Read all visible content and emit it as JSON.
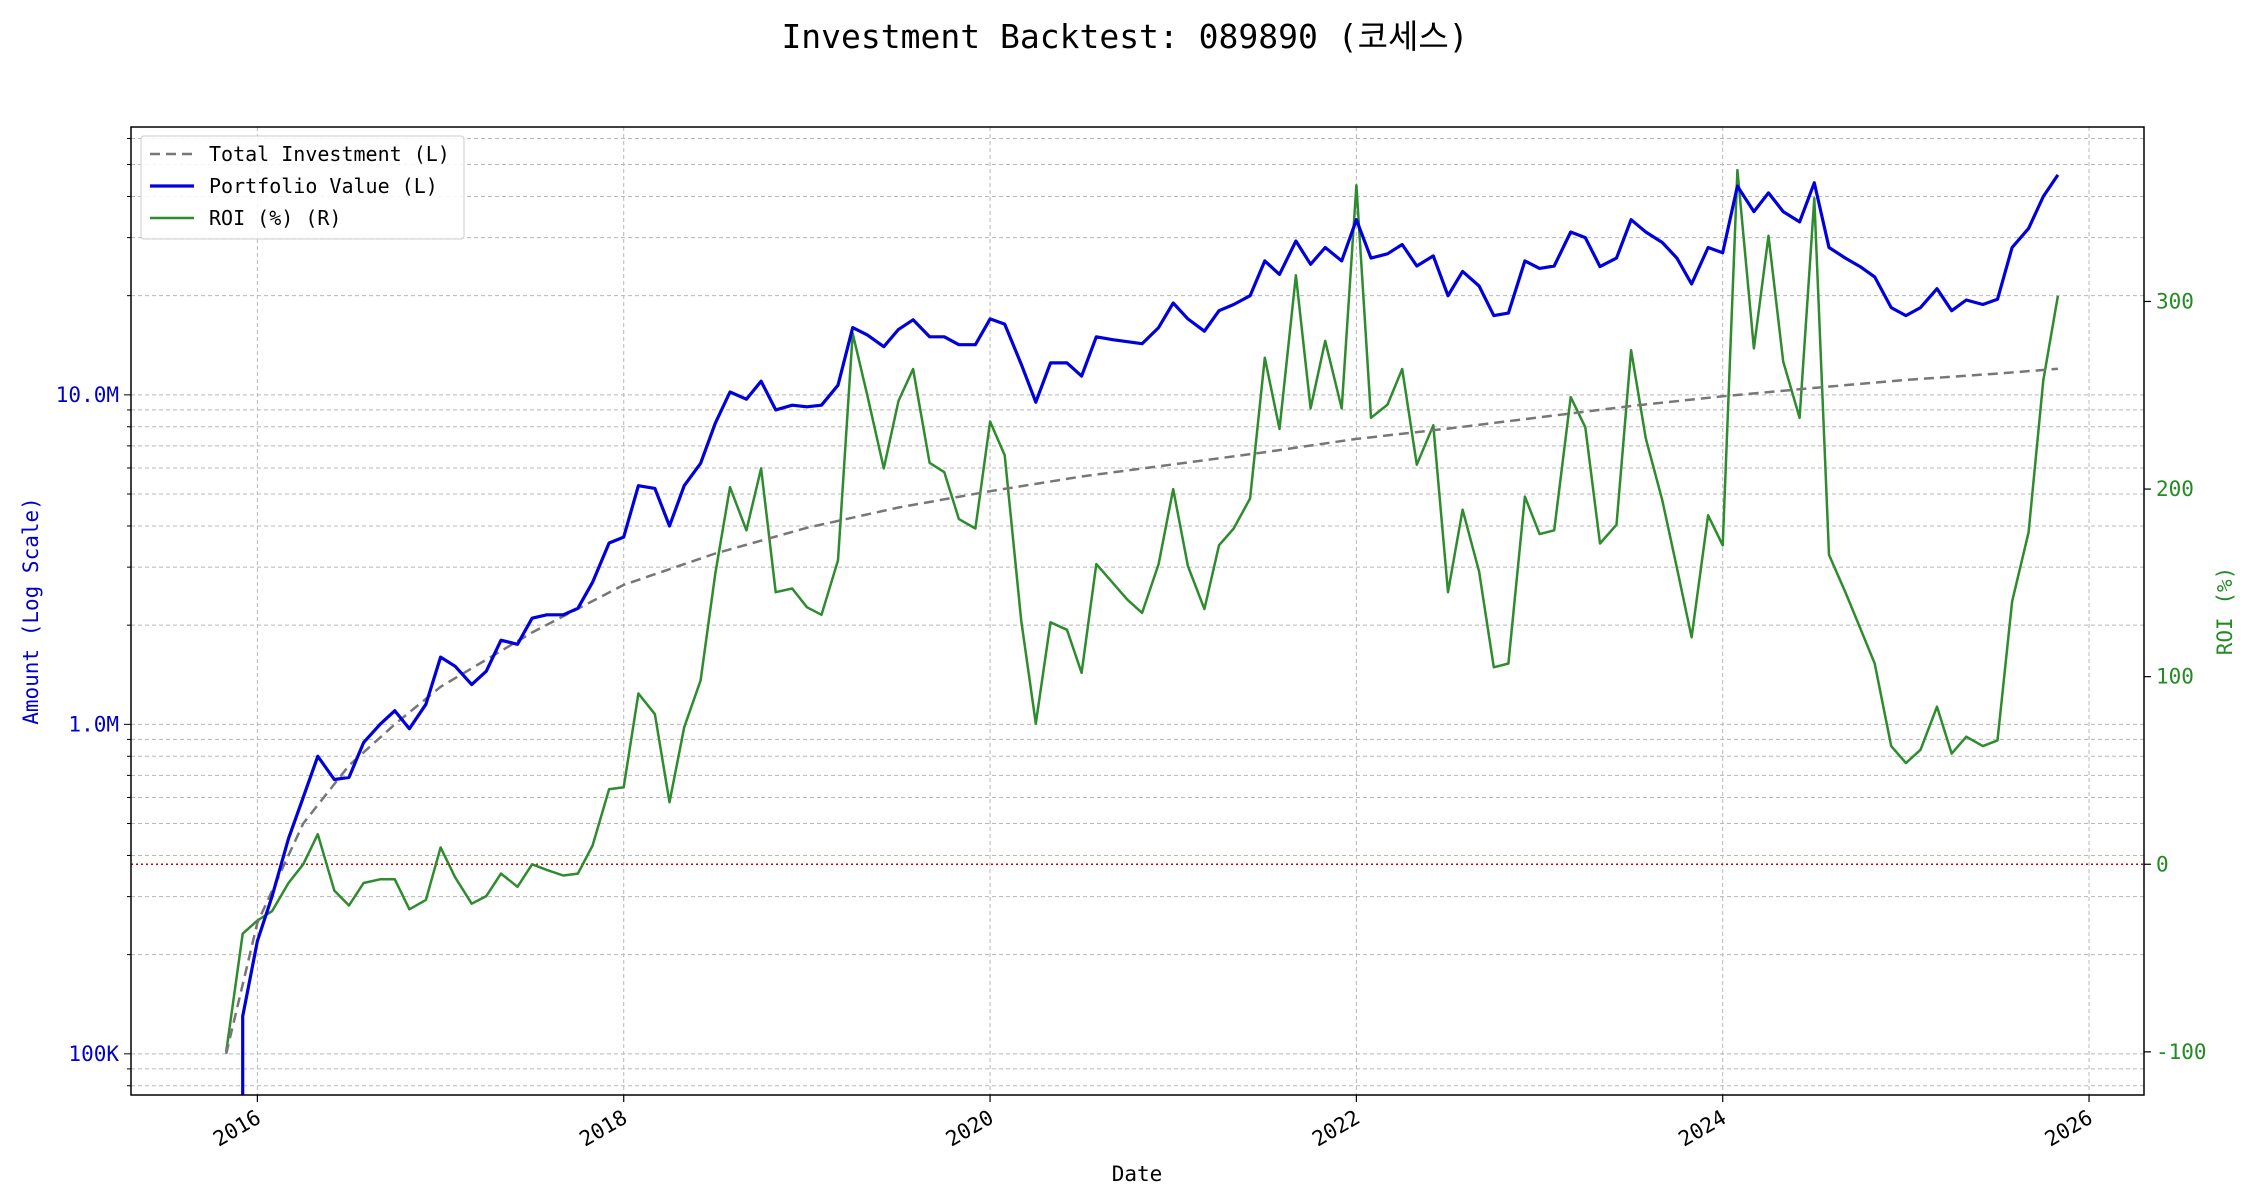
{
  "chart_data": {
    "type": "line",
    "title": "Investment Backtest: 089890 (코세스)",
    "xlabel": "Date",
    "ylabel_left": "Amount (Log Scale)",
    "ylabel_right": "ROI (%)",
    "left_axis": {
      "scale": "log",
      "range": [
        75000,
        65000000
      ],
      "major_ticks": [
        100000,
        1000000,
        10000000
      ],
      "tick_labels": [
        "100K",
        "1.0M",
        "10.0M"
      ],
      "color": "#0000cc"
    },
    "right_axis": {
      "scale": "linear",
      "range": [
        -123,
        393
      ],
      "ticks": [
        -100,
        0,
        100,
        200,
        300
      ],
      "tick_labels": [
        "-100",
        "0",
        "100",
        "200",
        "300"
      ],
      "color": "#228b22"
    },
    "x_axis": {
      "range": [
        2015.31,
        2026.3
      ],
      "ticks": [
        2016,
        2018,
        2020,
        2022,
        2024,
        2026
      ],
      "tick_labels": [
        "2016",
        "2018",
        "2020",
        "2022",
        "2024",
        "2026"
      ]
    },
    "zero_roi_line": {
      "value": 0,
      "color": "#cc0000",
      "style": "dotted"
    },
    "grid": true,
    "legend_position": "top-left",
    "series": [
      {
        "name": "Total Investment (L)",
        "axis": "left",
        "color": "#777777",
        "style": "dashed",
        "x": [
          2015.83,
          2016.0,
          2016.25,
          2016.5,
          2016.75,
          2017.0,
          2017.5,
          2018.0,
          2018.5,
          2019.0,
          2019.5,
          2020.0,
          2020.5,
          2021.0,
          2021.5,
          2022.0,
          2022.5,
          2023.0,
          2023.5,
          2024.0,
          2024.5,
          2025.0,
          2025.5,
          2025.83
        ],
        "values": [
          100000,
          250000,
          500000,
          750000,
          1000000,
          1300000,
          1900000,
          2650000,
          3300000,
          3950000,
          4550000,
          5100000,
          5650000,
          6150000,
          6700000,
          7350000,
          7900000,
          8550000,
          9250000,
          9900000,
          10500000,
          11100000,
          11600000,
          12000000
        ]
      },
      {
        "name": "Portfolio Value (L)",
        "axis": "left",
        "color": "#0000dd",
        "style": "solid",
        "x": [
          2015.92,
          2015.92,
          2016.0,
          2016.08,
          2016.17,
          2016.25,
          2016.33,
          2016.42,
          2016.5,
          2016.58,
          2016.67,
          2016.75,
          2016.83,
          2016.92,
          2017.0,
          2017.08,
          2017.17,
          2017.25,
          2017.33,
          2017.42,
          2017.5,
          2017.58,
          2017.67,
          2017.75,
          2017.83,
          2017.92,
          2018.0,
          2018.08,
          2018.17,
          2018.25,
          2018.33,
          2018.42,
          2018.5,
          2018.58,
          2018.67,
          2018.75,
          2018.83,
          2018.92,
          2019.0,
          2019.08,
          2019.17,
          2019.25,
          2019.33,
          2019.42,
          2019.5,
          2019.58,
          2019.67,
          2019.75,
          2019.83,
          2019.92,
          2020.0,
          2020.08,
          2020.17,
          2020.25,
          2020.33,
          2020.42,
          2020.5,
          2020.58,
          2020.67,
          2020.75,
          2020.83,
          2020.92,
          2021.0,
          2021.08,
          2021.17,
          2021.25,
          2021.33,
          2021.42,
          2021.5,
          2021.58,
          2021.67,
          2021.75,
          2021.83,
          2021.92,
          2022.0,
          2022.08,
          2022.17,
          2022.25,
          2022.33,
          2022.42,
          2022.5,
          2022.58,
          2022.67,
          2022.75,
          2022.83,
          2022.92,
          2023.0,
          2023.08,
          2023.17,
          2023.25,
          2023.33,
          2023.42,
          2023.5,
          2023.58,
          2023.67,
          2023.75,
          2023.83,
          2023.92,
          2024.0,
          2024.08,
          2024.17,
          2024.25,
          2024.33,
          2024.42,
          2024.5,
          2024.58,
          2024.67,
          2024.75,
          2024.83,
          2024.92,
          2025.0,
          2025.08,
          2025.17,
          2025.25,
          2025.33,
          2025.42,
          2025.5,
          2025.58,
          2025.67,
          2025.75,
          2025.83
        ],
        "values": [
          70000,
          130000,
          220000,
          300000,
          450000,
          600000,
          800000,
          680000,
          690000,
          880000,
          1000000,
          1100000,
          970000,
          1150000,
          1600000,
          1500000,
          1320000,
          1450000,
          1800000,
          1750000,
          2100000,
          2150000,
          2150000,
          2250000,
          2700000,
          3550000,
          3700000,
          5300000,
          5200000,
          4000000,
          5300000,
          6200000,
          8200000,
          10200000,
          9700000,
          11000000,
          9000000,
          9300000,
          9200000,
          9300000,
          10700000,
          16000000,
          15200000,
          14000000,
          15800000,
          16900000,
          15000000,
          15000000,
          14200000,
          14200000,
          17000000,
          16400000,
          12400000,
          9500000,
          12500000,
          12500000,
          11400000,
          15000000,
          14700000,
          14500000,
          14300000,
          16000000,
          19000000,
          17000000,
          15600000,
          18000000,
          18800000,
          20000000,
          25500000,
          23200000,
          29300000,
          24900000,
          28000000,
          25500000,
          34000000,
          26000000,
          26800000,
          28600000,
          24600000,
          26400000,
          20000000,
          23700000,
          21400000,
          17400000,
          17700000,
          25500000,
          24200000,
          24600000,
          31200000,
          30000000,
          24500000,
          26000000,
          34000000,
          31200000,
          29000000,
          26000000,
          21700000,
          28000000,
          27000000,
          43000000,
          36000000,
          41000000,
          36000000,
          33500000,
          44000000,
          28000000,
          26000000,
          24500000,
          22800000,
          18400000,
          17400000,
          18400000,
          21000000,
          18000000,
          19400000,
          18800000,
          19500000,
          28000000,
          32000000,
          40000000,
          46500000
        ]
      },
      {
        "name": "ROI (%) (R)",
        "axis": "right",
        "color": "#2e8b2e",
        "style": "solid",
        "x": [
          2015.83,
          2015.92,
          2016.0,
          2016.08,
          2016.17,
          2016.25,
          2016.33,
          2016.42,
          2016.5,
          2016.58,
          2016.67,
          2016.75,
          2016.83,
          2016.92,
          2017.0,
          2017.08,
          2017.17,
          2017.25,
          2017.33,
          2017.42,
          2017.5,
          2017.58,
          2017.67,
          2017.75,
          2017.83,
          2017.92,
          2018.0,
          2018.08,
          2018.17,
          2018.25,
          2018.33,
          2018.42,
          2018.5,
          2018.58,
          2018.67,
          2018.75,
          2018.83,
          2018.92,
          2019.0,
          2019.08,
          2019.17,
          2019.25,
          2019.33,
          2019.42,
          2019.5,
          2019.58,
          2019.67,
          2019.75,
          2019.83,
          2019.92,
          2020.0,
          2020.08,
          2020.17,
          2020.25,
          2020.33,
          2020.42,
          2020.5,
          2020.58,
          2020.67,
          2020.75,
          2020.83,
          2020.92,
          2021.0,
          2021.08,
          2021.17,
          2021.25,
          2021.33,
          2021.42,
          2021.5,
          2021.58,
          2021.67,
          2021.75,
          2021.83,
          2021.92,
          2022.0,
          2022.08,
          2022.17,
          2022.25,
          2022.33,
          2022.42,
          2022.5,
          2022.58,
          2022.67,
          2022.75,
          2022.83,
          2022.92,
          2023.0,
          2023.08,
          2023.17,
          2023.25,
          2023.33,
          2023.42,
          2023.5,
          2023.58,
          2023.67,
          2023.75,
          2023.83,
          2023.92,
          2024.0,
          2024.08,
          2024.17,
          2024.25,
          2024.33,
          2024.42,
          2024.5,
          2024.58,
          2024.67,
          2024.75,
          2024.83,
          2024.92,
          2025.0,
          2025.08,
          2025.17,
          2025.25,
          2025.33,
          2025.42,
          2025.5,
          2025.58,
          2025.67,
          2025.75,
          2025.83
        ],
        "values": [
          -100,
          -37,
          -30,
          -25,
          -10,
          0,
          16,
          -14,
          -22,
          -10,
          -8,
          -8,
          -24,
          -19,
          9,
          -7,
          -21,
          -17,
          -5,
          -12,
          0,
          -3,
          -6,
          -5,
          10,
          40,
          41,
          91,
          80,
          33,
          73,
          98,
          155,
          201,
          178,
          211,
          145,
          147,
          137,
          133,
          162,
          283,
          250,
          211,
          247,
          264,
          214,
          209,
          184,
          179,
          236,
          218,
          130,
          75,
          129,
          125,
          102,
          160,
          150,
          141,
          134,
          160,
          200,
          159,
          136,
          170,
          179,
          195,
          270,
          232,
          314,
          243,
          279,
          243,
          362,
          238,
          245,
          264,
          213,
          234,
          145,
          189,
          156,
          105,
          107,
          196,
          176,
          178,
          249,
          233,
          171,
          181,
          274,
          227,
          194,
          158,
          121,
          186,
          170,
          370,
          275,
          335,
          268,
          238,
          355,
          165,
          145,
          126,
          107,
          63,
          54,
          61,
          84,
          59,
          68,
          63,
          66,
          140,
          177,
          258,
          303
        ]
      }
    ]
  }
}
